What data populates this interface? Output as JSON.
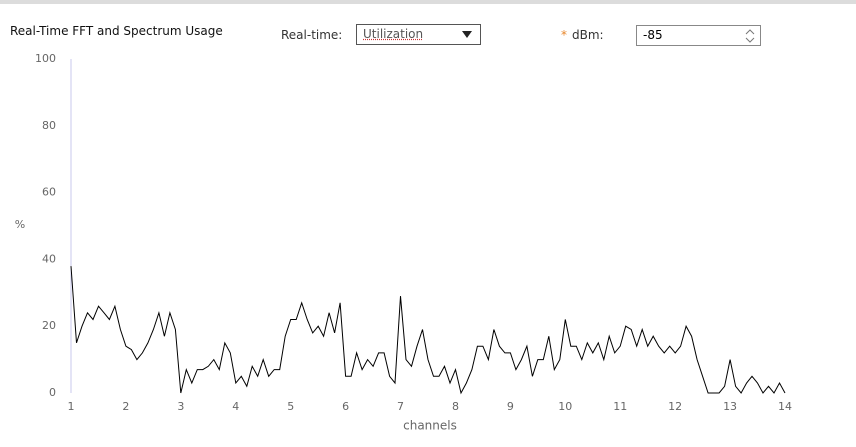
{
  "header": {
    "title": "Real-Time FFT and Spectrum Usage"
  },
  "controls": {
    "realtime_label": "Real-time:",
    "realtime_value": "Utilization",
    "required_mark": "*",
    "dbm_label": "dBm:",
    "dbm_value": "-85"
  },
  "chart_data": {
    "type": "line",
    "xlabel": "channels",
    "ylabel": "%",
    "color": "#000000",
    "x": [
      1,
      1.1,
      1.2,
      1.3,
      1.4,
      1.5,
      1.6,
      1.7,
      1.8,
      1.9,
      2,
      2.1,
      2.2,
      2.3,
      2.4,
      2.5,
      2.6,
      2.7,
      2.8,
      2.9,
      3,
      3.1,
      3.2,
      3.3,
      3.4,
      3.5,
      3.6,
      3.7,
      3.8,
      3.9,
      4,
      4.1,
      4.2,
      4.3,
      4.4,
      4.5,
      4.6,
      4.7,
      4.8,
      4.9,
      5,
      5.1,
      5.2,
      5.3,
      5.4,
      5.5,
      5.6,
      5.7,
      5.8,
      5.9,
      6,
      6.1,
      6.2,
      6.3,
      6.4,
      6.5,
      6.6,
      6.7,
      6.8,
      6.9,
      7,
      7.1,
      7.2,
      7.3,
      7.4,
      7.5,
      7.6,
      7.7,
      7.8,
      7.9,
      8,
      8.1,
      8.2,
      8.3,
      8.4,
      8.5,
      8.6,
      8.7,
      8.8,
      8.9,
      9,
      9.1,
      9.2,
      9.3,
      9.4,
      9.5,
      9.6,
      9.7,
      9.8,
      9.9,
      10,
      10.1,
      10.2,
      10.3,
      10.4,
      10.5,
      10.6,
      10.7,
      10.8,
      10.9,
      11,
      11.1,
      11.2,
      11.3,
      11.4,
      11.5,
      11.6,
      11.7,
      11.8,
      11.9,
      12,
      12.1,
      12.2,
      12.3,
      12.4,
      12.5,
      12.6,
      12.7,
      12.8,
      12.9,
      13,
      13.1,
      13.2,
      13.3,
      13.4,
      13.5,
      13.6,
      13.7,
      13.8,
      13.9,
      14
    ],
    "values": [
      38,
      15,
      20,
      24,
      22,
      26,
      24,
      22,
      26,
      19,
      14,
      13,
      10,
      12,
      15,
      19,
      24,
      17,
      24,
      19,
      0,
      7,
      3,
      7,
      7,
      8,
      10,
      7,
      15,
      12,
      3,
      5,
      2,
      8,
      5,
      10,
      5,
      7,
      7,
      17,
      22,
      22,
      27,
      22,
      18,
      20,
      17,
      24,
      18,
      27,
      5,
      5,
      12,
      7,
      10,
      8,
      12,
      12,
      5,
      3,
      29,
      10,
      8,
      14,
      19,
      10,
      5,
      5,
      8,
      3,
      7,
      0,
      3,
      7,
      14,
      14,
      10,
      19,
      14,
      12,
      12,
      7,
      10,
      14,
      5,
      10,
      10,
      17,
      7,
      10,
      22,
      14,
      14,
      10,
      15,
      12,
      15,
      10,
      17,
      12,
      14,
      20,
      19,
      14,
      19,
      14,
      17,
      14,
      12,
      14,
      12,
      14,
      20,
      17,
      10,
      5,
      0,
      0,
      0,
      2,
      10,
      2,
      0,
      3,
      5,
      3,
      0,
      2,
      0,
      3,
      0
    ],
    "xlim": [
      1,
      14
    ],
    "xticks": [
      1,
      2,
      3,
      4,
      5,
      6,
      7,
      8,
      9,
      10,
      11,
      12,
      13,
      14
    ],
    "ylim": [
      0,
      100
    ],
    "yticks": [
      0,
      20,
      40,
      60,
      80,
      100
    ]
  }
}
